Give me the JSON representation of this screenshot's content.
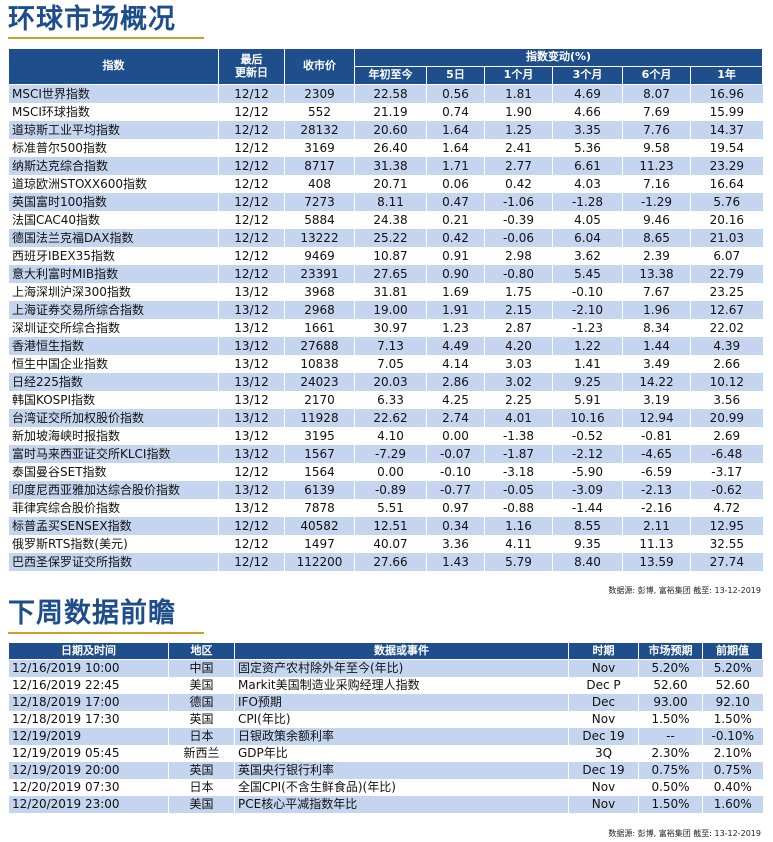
{
  "market": {
    "title": "环球市场概况",
    "headers": {
      "index": "指数",
      "last_update": "最后\n更新日",
      "close": "收市价",
      "change_group": "指数变动(%)",
      "ytd": "年初至今",
      "d5": "5日",
      "m1": "1个月",
      "m3": "3个月",
      "m6": "6个月",
      "y1": "1年"
    },
    "rows": [
      [
        "MSCI世界指数",
        "12/12",
        "2309",
        "22.58",
        "0.56",
        "1.81",
        "4.69",
        "8.07",
        "16.96"
      ],
      [
        "MSCI环球指数",
        "12/12",
        "552",
        "21.19",
        "0.74",
        "1.90",
        "4.66",
        "7.69",
        "15.99"
      ],
      [
        "道琼斯工业平均指数",
        "12/12",
        "28132",
        "20.60",
        "1.64",
        "1.25",
        "3.35",
        "7.76",
        "14.37"
      ],
      [
        "标准普尔500指数",
        "12/12",
        "3169",
        "26.40",
        "1.64",
        "2.41",
        "5.36",
        "9.58",
        "19.54"
      ],
      [
        "纳斯达克综合指数",
        "12/12",
        "8717",
        "31.38",
        "1.71",
        "2.77",
        "6.61",
        "11.23",
        "23.29"
      ],
      [
        "道琼欧洲STOXX600指数",
        "12/12",
        "408",
        "20.71",
        "0.06",
        "0.42",
        "4.03",
        "7.16",
        "16.64"
      ],
      [
        "英国富时100指数",
        "12/12",
        "7273",
        "8.11",
        "0.47",
        "-1.06",
        "-1.28",
        "-1.29",
        "5.76"
      ],
      [
        "法国CAC40指数",
        "12/12",
        "5884",
        "24.38",
        "0.21",
        "-0.39",
        "4.05",
        "9.46",
        "20.16"
      ],
      [
        "德国法兰克福DAX指数",
        "12/12",
        "13222",
        "25.22",
        "0.42",
        "-0.06",
        "6.04",
        "8.65",
        "21.03"
      ],
      [
        "西班牙IBEX35指数",
        "12/12",
        "9469",
        "10.87",
        "0.91",
        "2.98",
        "3.62",
        "2.39",
        "6.07"
      ],
      [
        "意大利富时MIB指数",
        "12/12",
        "23391",
        "27.65",
        "0.90",
        "-0.80",
        "5.45",
        "13.38",
        "22.79"
      ],
      [
        "上海深圳沪深300指数",
        "13/12",
        "3968",
        "31.81",
        "1.69",
        "1.75",
        "-0.10",
        "7.67",
        "23.25"
      ],
      [
        "上海证券交易所综合指数",
        "13/12",
        "2968",
        "19.00",
        "1.91",
        "2.15",
        "-2.10",
        "1.96",
        "12.67"
      ],
      [
        "深圳证交所综合指数",
        "13/12",
        "1661",
        "30.97",
        "1.23",
        "2.87",
        "-1.23",
        "8.34",
        "22.02"
      ],
      [
        "香港恒生指数",
        "13/12",
        "27688",
        "7.13",
        "4.49",
        "4.20",
        "1.22",
        "1.44",
        "4.39"
      ],
      [
        "恒生中国企业指数",
        "13/12",
        "10838",
        "7.05",
        "4.14",
        "3.03",
        "1.41",
        "3.49",
        "2.66"
      ],
      [
        "日经225指数",
        "13/12",
        "24023",
        "20.03",
        "2.86",
        "3.02",
        "9.25",
        "14.22",
        "10.12"
      ],
      [
        "韩国KOSPI指数",
        "13/12",
        "2170",
        "6.33",
        "4.25",
        "2.25",
        "5.91",
        "3.19",
        "3.56"
      ],
      [
        "台湾证交所加权股价指数",
        "13/12",
        "11928",
        "22.62",
        "2.74",
        "4.01",
        "10.16",
        "12.94",
        "20.99"
      ],
      [
        "新加坡海峡时报指数",
        "13/12",
        "3195",
        "4.10",
        "0.00",
        "-1.38",
        "-0.52",
        "-0.81",
        "2.69"
      ],
      [
        "富时马来西亚证交所KLCI指数",
        "13/12",
        "1567",
        "-7.29",
        "-0.07",
        "-1.87",
        "-2.12",
        "-4.65",
        "-6.48"
      ],
      [
        "泰国曼谷SET指数",
        "12/12",
        "1564",
        "0.00",
        "-0.10",
        "-3.18",
        "-5.90",
        "-6.59",
        "-3.17"
      ],
      [
        "印度尼西亚雅加达综合股价指数",
        "13/12",
        "6139",
        "-0.89",
        "-0.77",
        "-0.05",
        "-3.09",
        "-2.13",
        "-0.62"
      ],
      [
        "菲律宾综合股价指数",
        "13/12",
        "7878",
        "5.51",
        "0.97",
        "-0.88",
        "-1.44",
        "-2.16",
        "4.72"
      ],
      [
        "标普孟买SENSEX指数",
        "12/12",
        "40582",
        "12.51",
        "0.34",
        "1.16",
        "8.55",
        "2.11",
        "12.95"
      ],
      [
        "俄罗斯RTS指数(美元)",
        "12/12",
        "1497",
        "40.07",
        "3.36",
        "4.11",
        "9.35",
        "11.13",
        "32.55"
      ],
      [
        "巴西圣保罗证交所指数",
        "12/12",
        "112200",
        "27.66",
        "1.43",
        "5.79",
        "8.40",
        "13.59",
        "27.74"
      ]
    ],
    "source": "数据源: 彭博, 富裕集团 截至: 13-12-2019"
  },
  "events": {
    "title": "下周数据前瞻",
    "headers": {
      "datetime": "日期及时间",
      "region": "地区",
      "event": "数据或事件",
      "period": "时期",
      "forecast": "市场预期",
      "previous": "前期值"
    },
    "rows": [
      [
        "12/16/2019 10:00",
        "中国",
        "固定资产农村除外年至今(年比)",
        "Nov",
        "5.20%",
        "5.20%"
      ],
      [
        "12/16/2019 22:45",
        "美国",
        "Markit美国制造业采购经理人指数",
        "Dec P",
        "52.60",
        "52.60"
      ],
      [
        "12/18/2019 17:00",
        "德国",
        "IFO预期",
        "Dec",
        "93.00",
        "92.10"
      ],
      [
        "12/18/2019 17:30",
        "英国",
        "CPI(年比)",
        "Nov",
        "1.50%",
        "1.50%"
      ],
      [
        "12/19/2019",
        "日本",
        "日银政策余额利率",
        "Dec 19",
        "--",
        "-0.10%"
      ],
      [
        "12/19/2019 05:45",
        "新西兰",
        "GDP年比",
        "3Q",
        "2.30%",
        "2.10%"
      ],
      [
        "12/19/2019 20:00",
        "英国",
        "英国央行银行利率",
        "Dec 19",
        "0.75%",
        "0.75%"
      ],
      [
        "12/20/2019 07:30",
        "日本",
        "全国CPI(不含生鲜食品)(年比)",
        "Nov",
        "0.50%",
        "0.40%"
      ],
      [
        "12/20/2019 23:00",
        "美国",
        "PCE核心平减指数年比",
        "Nov",
        "1.50%",
        "1.60%"
      ]
    ],
    "source": "数据源: 彭博, 富裕集团 截至: 13-12-2019"
  },
  "colors": {
    "header_bg": "#1f4e8c",
    "stripe": "#c5d5ef",
    "title": "#1e4d8c",
    "rule": "#c9a227"
  }
}
